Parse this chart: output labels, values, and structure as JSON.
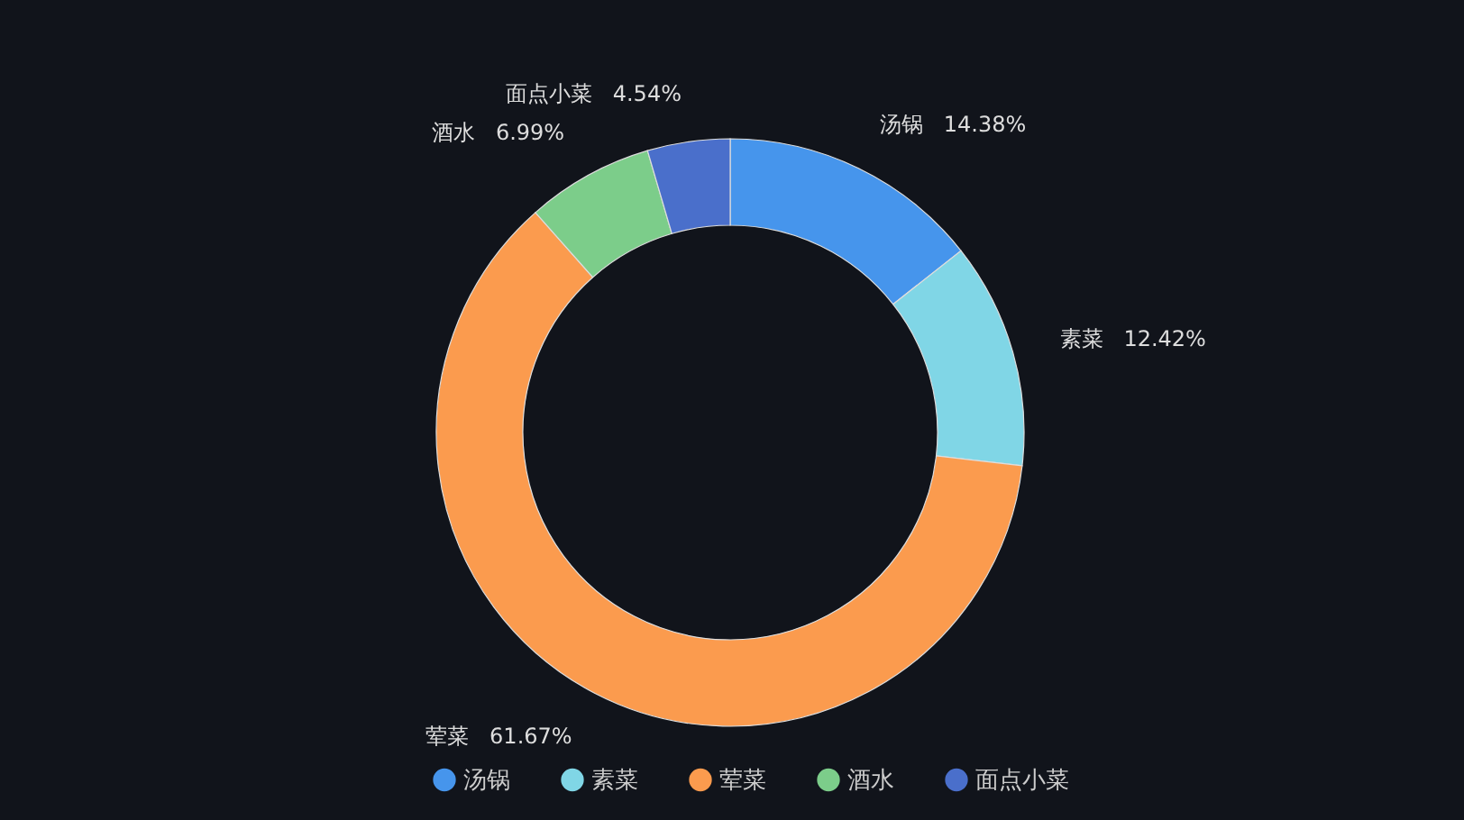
{
  "chart_data": {
    "type": "donut",
    "categories": [
      "汤锅",
      "素菜",
      "荤菜",
      "酒水",
      "面点小菜"
    ],
    "values": [
      14.38,
      12.42,
      61.67,
      6.99,
      4.54
    ],
    "value_labels": [
      "14.38%",
      "12.42%",
      "61.67%",
      "6.99%",
      "4.54%"
    ],
    "colors": [
      "#4695ec",
      "#80d6e6",
      "#fb9b4e",
      "#7ccd8a",
      "#4a6fcb"
    ],
    "legend": "bottom"
  }
}
